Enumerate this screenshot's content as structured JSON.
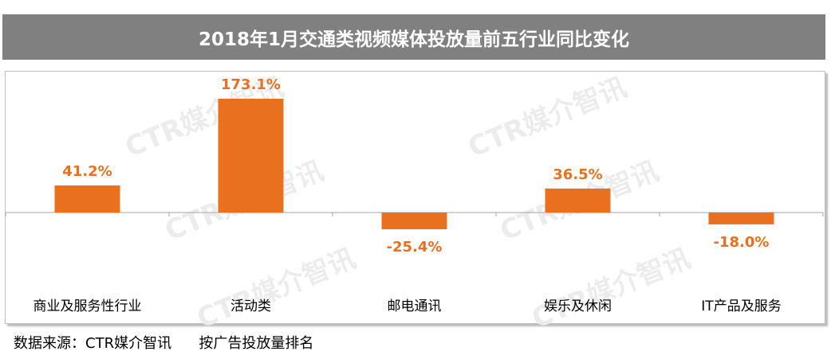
{
  "title": "2018年1月交通类视频媒体投放量前五行业同比变化",
  "source_note": "数据来源：CTR媒介智讯      按广告投放量排名",
  "watermark_text": "CTR媒介智讯",
  "colors": {
    "bar": "#E8701E",
    "label": "#E8701E",
    "title_bg": "#808080",
    "axis": "#a6a6a6"
  },
  "chart_data": {
    "type": "bar",
    "title": "2018年1月交通类视频媒体投放量前五行业同比变化",
    "xlabel": "",
    "ylabel": "",
    "categories": [
      "商业及服务性行业",
      "活动类",
      "邮电通讯",
      "娱乐及休闲",
      "IT产品及服务"
    ],
    "values": [
      41.2,
      173.1,
      -25.4,
      36.5,
      -18.0
    ],
    "data_labels": [
      "41.2%",
      "173.1%",
      "-25.4%",
      "36.5%",
      "-18.0%"
    ],
    "ylim": [
      -40,
      180
    ],
    "grid": false,
    "legend": "none"
  }
}
